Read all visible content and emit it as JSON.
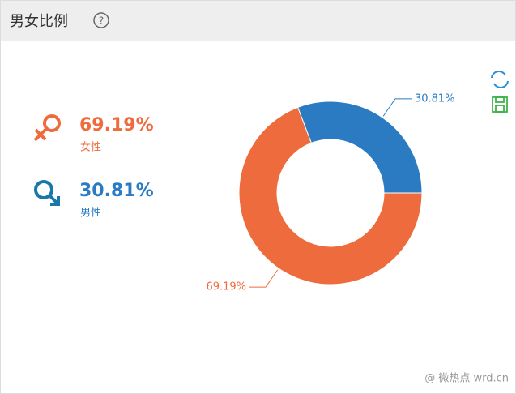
{
  "header": {
    "title": "男女比例",
    "help": "?"
  },
  "chart_data": {
    "type": "donut",
    "categories": [
      "女性",
      "男性"
    ],
    "values": [
      69.19,
      30.81
    ],
    "value_labels": [
      "69.19%",
      "30.81%"
    ],
    "colors": [
      "#ee6b3e",
      "#2a7bc2"
    ]
  },
  "watermark": "@ 微热点  wrd.cn"
}
